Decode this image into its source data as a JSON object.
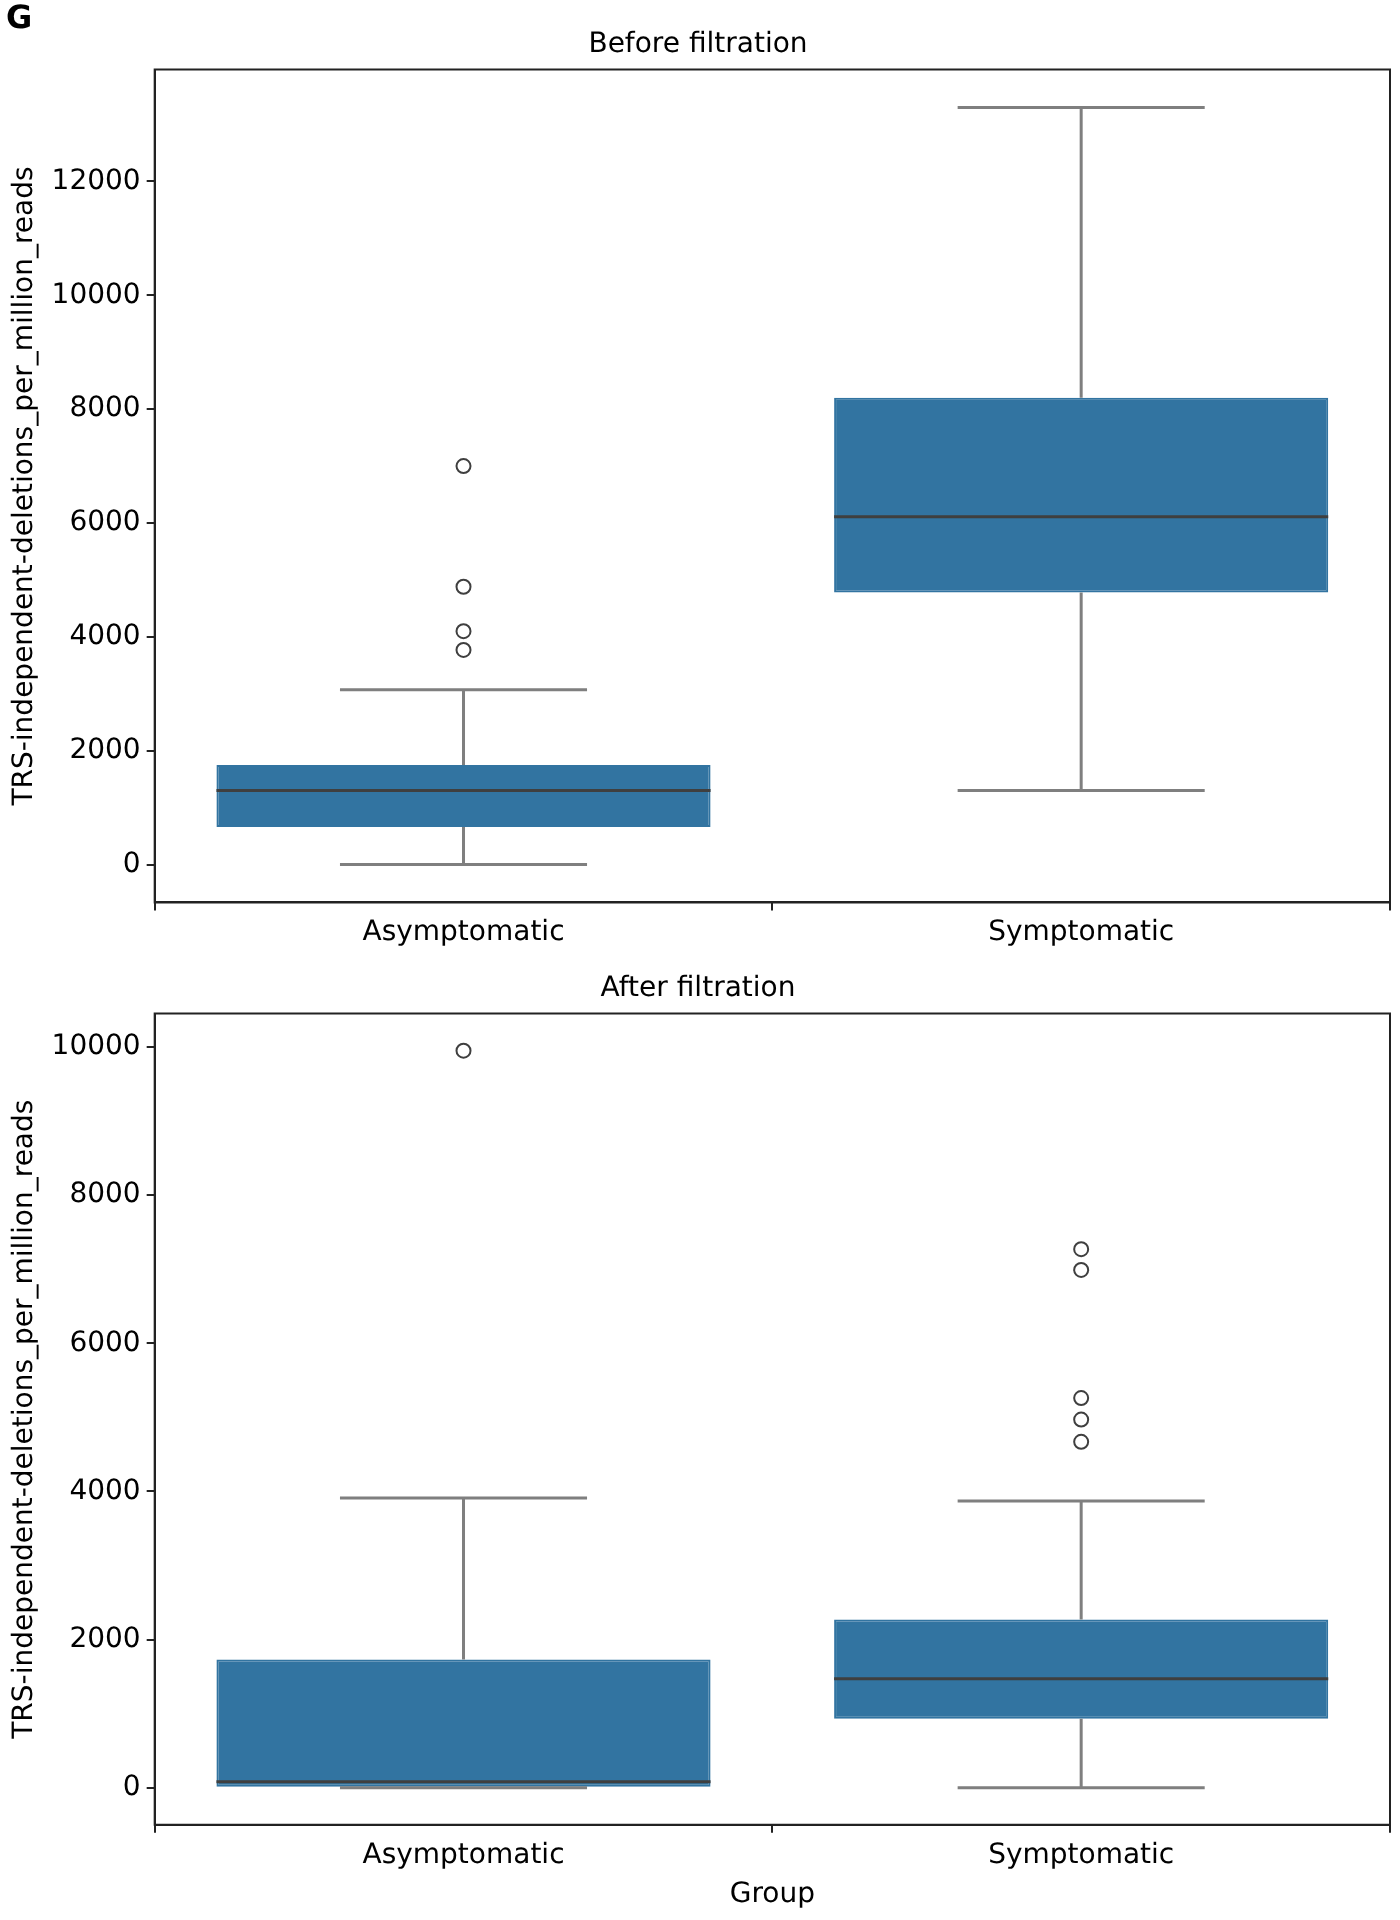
{
  "chart_data": [
    {
      "type": "box",
      "title": "Before filtration",
      "ylabel": "TRS-independent-deletions_per_million_reads",
      "annotations": [
        "G"
      ],
      "categories": [
        "Asymptomatic",
        "Symptomatic"
      ],
      "color": "#3274a1",
      "boxes": [
        {
          "low": 0,
          "q1": 660,
          "median": 1300,
          "q3": 1750,
          "high": 3070,
          "outliers": [
            3770,
            4100,
            4880,
            7000
          ]
        },
        {
          "low": 1300,
          "q1": 4780,
          "median": 6110,
          "q3": 8200,
          "high": 13300
        }
      ],
      "ylim": [
        -665,
        13965
      ],
      "yticks": [
        0,
        2000,
        4000,
        6000,
        8000,
        10000,
        12000
      ],
      "grid": false
    },
    {
      "type": "box",
      "title": "After filtration",
      "xlabel": "Group",
      "ylabel": "TRS-independent-deletions_per_million_reads",
      "categories": [
        "Asymptomatic",
        "Symptomatic"
      ],
      "color": "#3274a1",
      "boxes": [
        {
          "low": 0,
          "q1": 0,
          "median": 80,
          "q3": 1730,
          "high": 3910,
          "outliers": [
            9950
          ]
        },
        {
          "low": 0,
          "q1": 930,
          "median": 1470,
          "q3": 2270,
          "high": 3870,
          "outliers": [
            4670,
            4970,
            5260,
            6990,
            7270
          ]
        }
      ],
      "ylim": [
        -500,
        10450
      ],
      "yticks": [
        0,
        2000,
        4000,
        6000,
        8000,
        10000
      ],
      "grid": false
    }
  ]
}
